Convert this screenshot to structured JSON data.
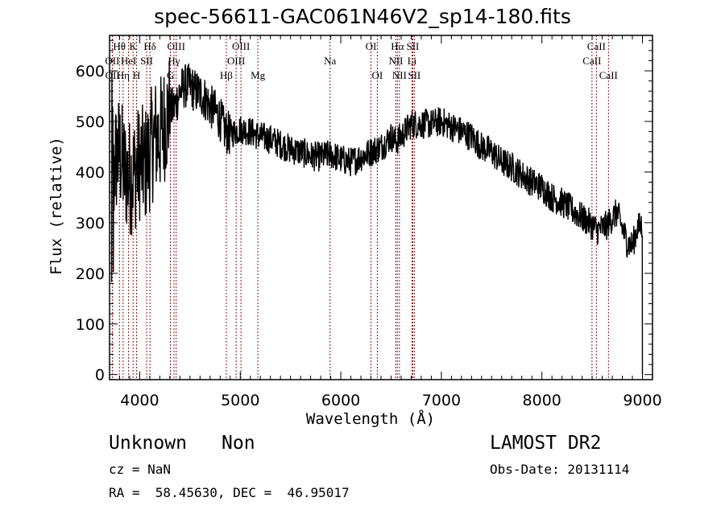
{
  "chart_data": {
    "type": "line",
    "title": "spec-56611-GAC061N46V2_sp14-180.fits",
    "xlabel": "Wavelength (Å)",
    "ylabel": "Flux (relative)",
    "xlim": [
      3700,
      9100
    ],
    "ylim": [
      -10,
      670
    ],
    "x_ticks": [
      4000,
      5000,
      6000,
      7000,
      8000,
      9000
    ],
    "x_tick_labels": [
      "4000",
      "5000",
      "6000",
      "7000",
      "8000",
      "9000"
    ],
    "y_ticks": [
      0,
      100,
      200,
      300,
      400,
      500,
      600
    ],
    "y_tick_labels": [
      "0",
      "100",
      "200",
      "300",
      "400",
      "500",
      "600"
    ],
    "grid": false,
    "line_color": "#000000",
    "marker_line_color": "#8b1a1a",
    "spectrum_envelope": {
      "x": [
        3720,
        3750,
        3800,
        3850,
        3900,
        3950,
        4000,
        4050,
        4100,
        4150,
        4200,
        4250,
        4300,
        4350,
        4400,
        4450,
        4500,
        4550,
        4600,
        4650,
        4700,
        4750,
        4800,
        4850,
        4900,
        4950,
        5000,
        5100,
        5200,
        5300,
        5400,
        5500,
        5600,
        5700,
        5800,
        5900,
        6000,
        6100,
        6200,
        6300,
        6400,
        6500,
        6550,
        6600,
        6700,
        6800,
        6900,
        7000,
        7100,
        7200,
        7300,
        7400,
        7500,
        7600,
        7700,
        7800,
        7900,
        8000,
        8100,
        8200,
        8300,
        8400,
        8500,
        8550,
        8600,
        8650,
        8700,
        8750,
        8800,
        8850,
        8900,
        8950,
        9000
      ],
      "y": [
        300,
        420,
        440,
        400,
        390,
        400,
        420,
        410,
        440,
        470,
        470,
        500,
        520,
        530,
        560,
        570,
        570,
        560,
        555,
        545,
        530,
        520,
        505,
        480,
        475,
        480,
        485,
        480,
        470,
        465,
        455,
        445,
        440,
        432,
        430,
        435,
        425,
        420,
        430,
        440,
        450,
        470,
        460,
        470,
        495,
        495,
        495,
        500,
        490,
        480,
        470,
        450,
        440,
        420,
        410,
        395,
        380,
        370,
        350,
        340,
        325,
        310,
        295,
        285,
        290,
        295,
        310,
        320,
        290,
        260,
        255,
        290,
        295
      ]
    },
    "line_markers": [
      {
        "label": "Hθ",
        "x": 3798,
        "row": 1
      },
      {
        "label": "K",
        "x": 3934,
        "row": 1
      },
      {
        "label": "Hδ",
        "x": 4102,
        "row": 1
      },
      {
        "label": "OIII",
        "x": 4363,
        "row": 1
      },
      {
        "label": "OIII",
        "x": 5007,
        "row": 1
      },
      {
        "label": "OI",
        "x": 6300,
        "row": 1
      },
      {
        "label": "Hα",
        "x": 6563,
        "row": 1
      },
      {
        "label": "SII",
        "x": 6716,
        "row": 1
      },
      {
        "label": "CaII",
        "x": 8542,
        "row": 1
      },
      {
        "label": "OII",
        "x": 3727,
        "row": 2
      },
      {
        "label": "HeI",
        "x": 3889,
        "row": 2
      },
      {
        "label": "SII",
        "x": 4069,
        "row": 2
      },
      {
        "label": "Hγ",
        "x": 4341,
        "row": 2
      },
      {
        "label": "OIII",
        "x": 4959,
        "row": 2
      },
      {
        "label": "Na",
        "x": 5893,
        "row": 2
      },
      {
        "label": "NII",
        "x": 6548,
        "row": 2
      },
      {
        "label": "Li",
        "x": 6708,
        "row": 2
      },
      {
        "label": "CaII",
        "x": 8498,
        "row": 2
      },
      {
        "label": "OII",
        "x": 3729,
        "row": 3
      },
      {
        "label": "Hη",
        "x": 3835,
        "row": 3
      },
      {
        "label": "H",
        "x": 3969,
        "row": 3
      },
      {
        "label": "G",
        "x": 4305,
        "row": 3
      },
      {
        "label": "Hβ",
        "x": 4861,
        "row": 3
      },
      {
        "label": "Mg",
        "x": 5175,
        "row": 3
      },
      {
        "label": "OI",
        "x": 6363,
        "row": 3
      },
      {
        "label": "NII",
        "x": 6583,
        "row": 3
      },
      {
        "label": "SII",
        "x": 6731,
        "row": 3
      },
      {
        "label": "CaII",
        "x": 8662,
        "row": 3
      }
    ]
  },
  "info": {
    "class_label": "Unknown",
    "subclass_label": "Non",
    "cz": "cz = NaN",
    "coords": "RA =  58.45630, DEC =  46.95017",
    "survey": "LAMOST DR2",
    "obs_date": "Obs-Date: 20131114"
  }
}
